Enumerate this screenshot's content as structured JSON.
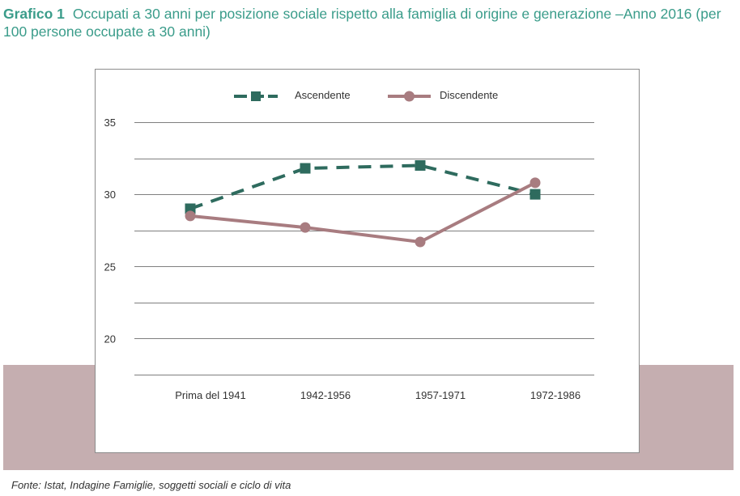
{
  "header": {
    "label": "Grafico 1",
    "title": "Occupati a 30 anni per posizione sociale rispetto alla famiglia di origine e generazione –Anno 2016 (per 100 persone occupate a 30 anni)"
  },
  "footer": {
    "source": "Fonte: Istat, Indagine Famiglie, soggetti sociali e ciclo di vita"
  },
  "chart_data": {
    "type": "line",
    "categories": [
      "Prima del 1941",
      "1942-1956",
      "1957-1971",
      "1972-1986"
    ],
    "series": [
      {
        "name": "Ascendente",
        "values": [
          29.0,
          31.8,
          32.0,
          30.0
        ],
        "color": "#2e6b5e",
        "dashed": true,
        "marker": "square"
      },
      {
        "name": "Discendente",
        "values": [
          28.5,
          27.7,
          26.7,
          30.8
        ],
        "color": "#a87c80",
        "dashed": false,
        "marker": "circle"
      }
    ],
    "yticks": [
      20,
      25,
      30,
      35
    ],
    "ylim": [
      17.5,
      35
    ],
    "grid": true,
    "legend": "top"
  }
}
